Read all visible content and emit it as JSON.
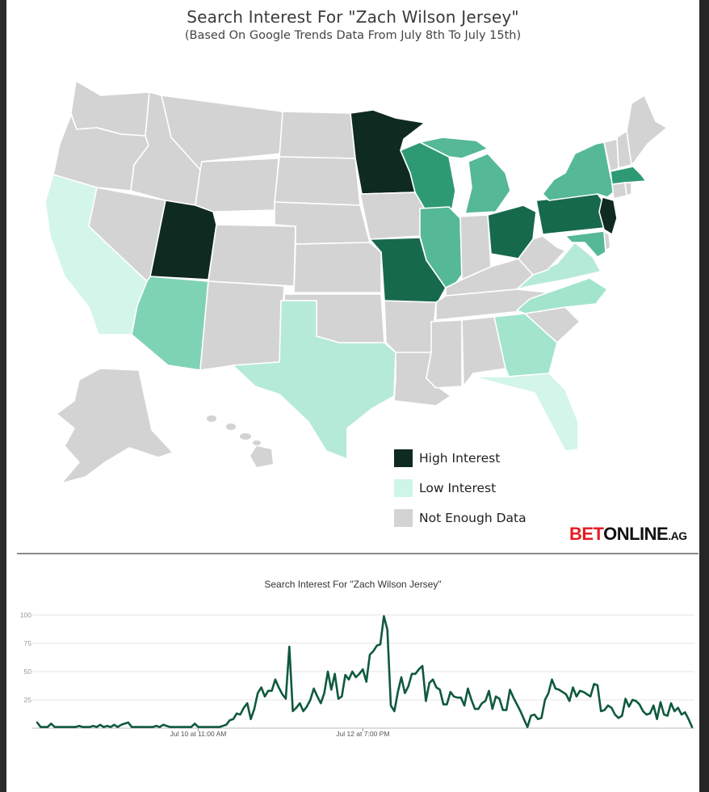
{
  "header": {
    "title": "Search Interest For \"Zach Wilson Jersey\"",
    "subtitle": "(Based On Google Trends Data From July 8th To July 15th)"
  },
  "colors": {
    "high": "#0f2a20",
    "level2": "#17694b",
    "level3": "#2e9a74",
    "level4": "#55b896",
    "level5": "#7fd3b5",
    "low": "#b6ead8",
    "lowest": "#d3f5ea",
    "none": "#d3d3d3",
    "line": "#0f5a3c",
    "brand_red": "#e31d25"
  },
  "legend": {
    "items": [
      {
        "label": "High Interest",
        "color": "#0f2a20"
      },
      {
        "label": "Low Interest",
        "color": "#cdf5e8"
      },
      {
        "label": "Not Enough Data",
        "color": "#d3d3d3"
      }
    ]
  },
  "brand": {
    "part1": "BET",
    "part2": "ONLINE",
    "part3": ".AG"
  },
  "map_states": {
    "high_interest": [
      "Utah",
      "Minnesota",
      "New Jersey"
    ],
    "strong_interest": [
      "Ohio",
      "Pennsylvania",
      "Missouri"
    ],
    "medium_interest": [
      "Wisconsin",
      "Massachusetts",
      "New York",
      "Illinois",
      "Michigan",
      "Maryland"
    ],
    "low_interest": [
      "Arizona",
      "Georgia",
      "Texas",
      "Virginia",
      "North Carolina"
    ],
    "lowest_interest": [
      "California",
      "Florida"
    ]
  },
  "chart_data": {
    "type": "line",
    "title": "Search Interest For \"Zach Wilson Jersey\"",
    "xlabel": "",
    "ylabel": "",
    "ylim": [
      0,
      100
    ],
    "yticks": [
      25,
      50,
      75,
      100
    ],
    "xtick_labels": [
      {
        "label": "Jul 10 at 11:00 AM",
        "index": 46
      },
      {
        "label": "Jul 12 at 7:00 PM",
        "index": 93
      }
    ],
    "grid": true,
    "series": [
      {
        "values": [
          5,
          1,
          1,
          1,
          4,
          1,
          1,
          1,
          1,
          1,
          1,
          1,
          2,
          1,
          1,
          1,
          2,
          1,
          3,
          1,
          2,
          1,
          3,
          1,
          3,
          4,
          5,
          1,
          1,
          1,
          1,
          1,
          1,
          1,
          2,
          1,
          3,
          2,
          1,
          1,
          1,
          1,
          1,
          1,
          1,
          4,
          1,
          1,
          1,
          1,
          1,
          1,
          1,
          2,
          3,
          7,
          8,
          13,
          12,
          18,
          22,
          8,
          17,
          31,
          36,
          28,
          33,
          33,
          43,
          36,
          30,
          26,
          72,
          15,
          18,
          22,
          15,
          19,
          25,
          35,
          28,
          22,
          31,
          50,
          34,
          48,
          26,
          28,
          47,
          43,
          50,
          45,
          48,
          52,
          41,
          65,
          68,
          73,
          74,
          99,
          87,
          20,
          15,
          32,
          45,
          31,
          37,
          48,
          48,
          52,
          55,
          24,
          40,
          43,
          36,
          34,
          21,
          21,
          32,
          28,
          27,
          27,
          20,
          35,
          25,
          17,
          17,
          22,
          24,
          33,
          17,
          28,
          26,
          16,
          16,
          34,
          27,
          21,
          15,
          8,
          1,
          11,
          12,
          8,
          9,
          25,
          31,
          43,
          35,
          34,
          32,
          30,
          24,
          36,
          28,
          33,
          32,
          30,
          28,
          39,
          38,
          15,
          16,
          20,
          18,
          12,
          9,
          11,
          26,
          19,
          25,
          24,
          21,
          15,
          12,
          13,
          20,
          8,
          23,
          12,
          11,
          22,
          15,
          18,
          12,
          14,
          8,
          1
        ]
      }
    ]
  }
}
